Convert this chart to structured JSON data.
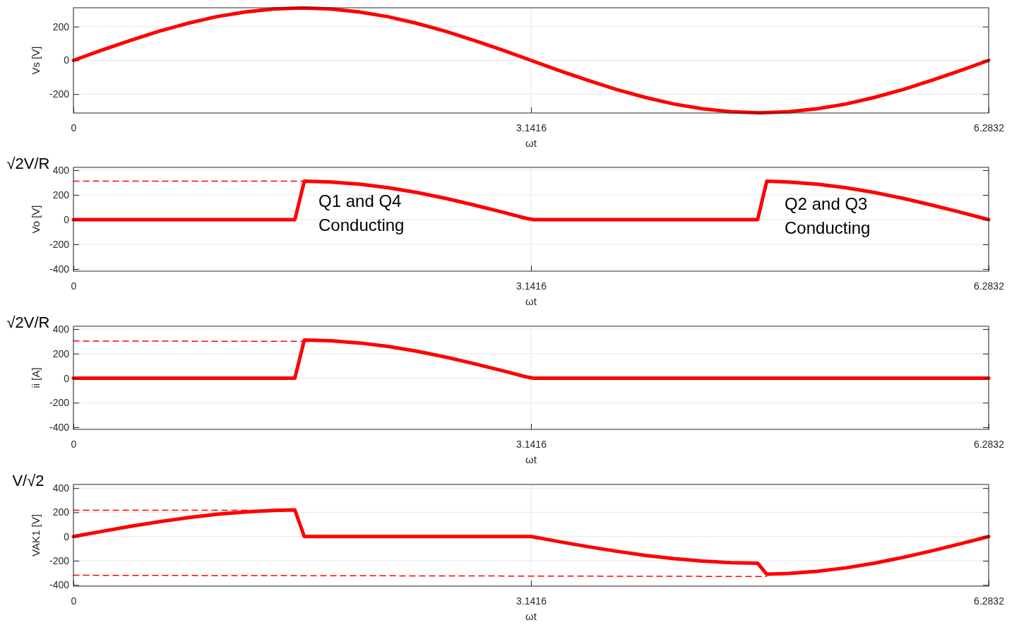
{
  "chart_data": [
    {
      "type": "line",
      "xlabel": "ωt",
      "ylabel": "Vs [V]",
      "xlim": [
        0,
        6.2832
      ],
      "xticks": [
        0,
        3.1416,
        6.2832
      ],
      "ylim": [
        -312,
        312
      ],
      "yticks": [
        -200,
        0,
        200
      ],
      "grid": true,
      "series": [
        {
          "color": "#ff0000",
          "x": [
            0,
            0.1963,
            0.3927,
            0.589,
            0.7854,
            0.9817,
            1.1781,
            1.3744,
            1.5708,
            1.7671,
            1.9635,
            2.1598,
            2.3562,
            2.5525,
            2.7489,
            2.9452,
            3.1416,
            3.3379,
            3.5343,
            3.7306,
            3.927,
            4.1233,
            4.3197,
            4.516,
            4.7124,
            4.9087,
            5.1051,
            5.3014,
            5.4978,
            5.6941,
            5.8905,
            6.0868,
            6.2832
          ],
          "values": [
            0,
            61,
            119,
            173,
            220,
            259,
            287,
            305,
            311,
            305,
            287,
            259,
            220,
            173,
            119,
            61,
            0,
            -61,
            -119,
            -173,
            -220,
            -259,
            -287,
            -305,
            -311,
            -305,
            -287,
            -259,
            -220,
            -173,
            -119,
            -61,
            0
          ]
        }
      ]
    },
    {
      "type": "line",
      "xlabel": "ωt",
      "ylabel": "Vo [V]",
      "xlim": [
        0,
        6.2832
      ],
      "xticks": [
        0,
        3.1416,
        6.2832
      ],
      "ylim": [
        -417,
        423
      ],
      "yticks": [
        -400,
        -200,
        0,
        200,
        400
      ],
      "grid": true,
      "annotations": [
        "√2V/R",
        "Q1 and Q4\nConducting",
        "Q2 and Q3\nConducting"
      ],
      "series": [
        {
          "color": "#ff0000",
          "line_style": "dashed",
          "x": [
            0,
            1.585
          ],
          "values": [
            311,
            311
          ]
        },
        {
          "color": "#ff0000",
          "x": [
            0,
            1.52,
            1.585,
            1.7671,
            1.9635,
            2.1598,
            2.3562,
            2.5525,
            2.7489,
            2.9452,
            3.11,
            3.16,
            4.697,
            4.76,
            4.9087,
            5.1051,
            5.3014,
            5.4978,
            5.6941,
            5.8905,
            6.0868,
            6.2832
          ],
          "values": [
            0,
            0,
            311,
            305,
            287,
            259,
            220,
            173,
            119,
            61,
            10,
            0,
            0,
            311,
            305,
            287,
            259,
            220,
            173,
            119,
            61,
            0
          ]
        }
      ]
    },
    {
      "type": "line",
      "xlabel": "ωt",
      "ylabel": "ii [A]",
      "xlim": [
        0,
        6.2832
      ],
      "xticks": [
        0,
        3.1416,
        6.2832
      ],
      "ylim": [
        -417,
        423
      ],
      "yticks": [
        -400,
        -200,
        0,
        200,
        400
      ],
      "grid": true,
      "annotations": [
        "√2V/R"
      ],
      "series": [
        {
          "color": "#ff0000",
          "line_style": "dashed",
          "x": [
            0,
            1.585
          ],
          "values": [
            303,
            300
          ]
        },
        {
          "color": "#ff0000",
          "x": [
            0,
            1.52,
            1.585,
            1.7671,
            1.9635,
            2.1598,
            2.3562,
            2.5525,
            2.7489,
            2.9452,
            3.11,
            3.16,
            6.2832
          ],
          "values": [
            0,
            0,
            311,
            305,
            287,
            259,
            220,
            173,
            119,
            61,
            10,
            0,
            0
          ]
        }
      ]
    },
    {
      "type": "line",
      "xlabel": "ωt",
      "ylabel": "VAK1 [V]",
      "xlim": [
        0,
        6.2832
      ],
      "xticks": [
        0,
        3.1416,
        6.2832
      ],
      "ylim": [
        -410,
        430
      ],
      "yticks": [
        -400,
        -200,
        0,
        200,
        400
      ],
      "grid": true,
      "annotations": [
        "V/√2"
      ],
      "series": [
        {
          "color": "#ff0000",
          "line_style": "dashed",
          "x": [
            0,
            1.52
          ],
          "values": [
            217,
            217
          ]
        },
        {
          "color": "#ff0000",
          "line_style": "dashed",
          "x": [
            0,
            4.76
          ],
          "values": [
            -320,
            -330
          ]
        },
        {
          "color": "#ff0000",
          "x": [
            0,
            0.1963,
            0.3927,
            0.589,
            0.7854,
            0.9817,
            1.1781,
            1.3744,
            1.52,
            1.585,
            3.1416,
            3.3379,
            3.5343,
            3.7306,
            3.927,
            4.1233,
            4.3197,
            4.516,
            4.697,
            4.76,
            4.9087,
            5.1051,
            5.3014,
            5.4978,
            5.6941,
            5.8905,
            6.0868,
            6.2832
          ],
          "values": [
            0,
            43,
            84,
            122,
            156,
            183,
            203,
            216,
            220,
            0,
            0,
            -43,
            -84,
            -122,
            -156,
            -183,
            -203,
            -216,
            -220,
            -311,
            -305,
            -287,
            -259,
            -220,
            -173,
            -119,
            -61,
            0
          ]
        }
      ]
    }
  ]
}
